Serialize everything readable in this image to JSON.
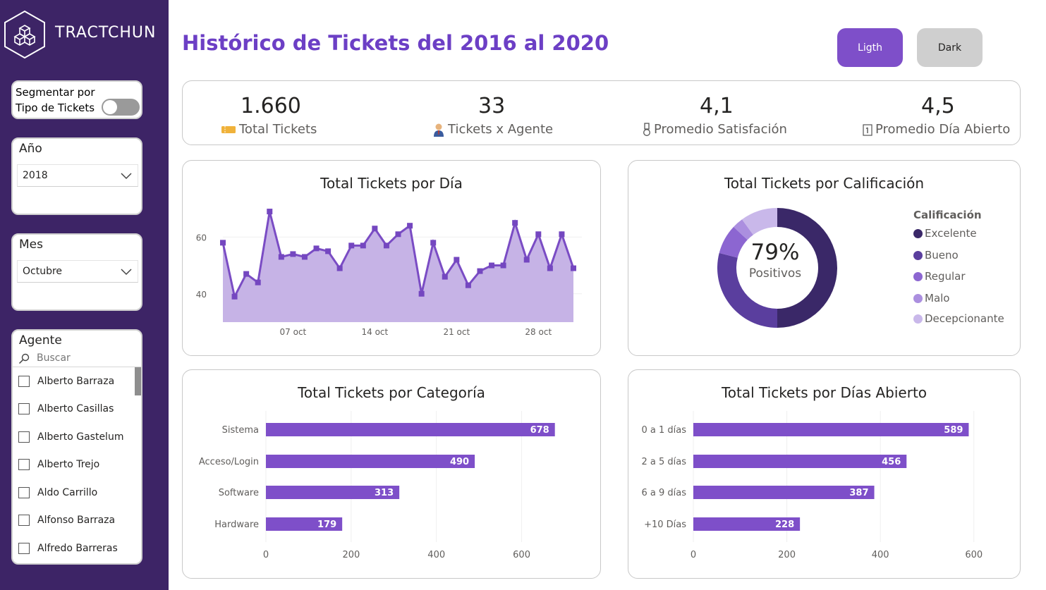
{
  "sidebar": {
    "brand": "TRACTCHUN",
    "segment_label_line1": "Segmentar por",
    "segment_label_line2": "Tipo de Tickets",
    "year": {
      "title": "Año",
      "value": "2018"
    },
    "month": {
      "title": "Mes",
      "value": "Octubre"
    },
    "agent": {
      "title": "Agente",
      "search_placeholder": "Buscar",
      "items": [
        "Alberto Barraza",
        "Alberto Casillas",
        "Alberto Gastelum",
        "Alberto Trejo",
        "Aldo Carrillo",
        "Alfonso Barraza",
        "Alfredo Barreras"
      ]
    }
  },
  "header": {
    "title": "Histórico de Tickets del 2016 al 2020",
    "btn_light": "Ligth",
    "btn_dark": "Dark"
  },
  "kpis": [
    {
      "value": "1.660",
      "label": "Total Tickets",
      "icon": "ticket-icon"
    },
    {
      "value": "33",
      "label": "Tickets x Agente",
      "icon": "agent-icon"
    },
    {
      "value": "4,1",
      "label": "Promedio Satisfación",
      "icon": "medal-icon"
    },
    {
      "value": "4,5",
      "label": "Promedio Día Abierto",
      "icon": "calendar-icon"
    }
  ],
  "colors": {
    "accent": "#6c3fc5",
    "sidebar": "#3d2466",
    "bar": "#7e4fc9",
    "area": "#c6b3e6",
    "line": "#7a4cc4"
  },
  "chart_data": [
    {
      "type": "area",
      "title": "Total Tickets por Día",
      "x_tick_labels": [
        "07 oct",
        "14 oct",
        "21 oct",
        "28 oct"
      ],
      "y_tick_labels": [
        "40",
        "60"
      ],
      "ylim": [
        30,
        72
      ],
      "x": [
        1,
        2,
        3,
        4,
        5,
        6,
        7,
        8,
        9,
        10,
        11,
        12,
        13,
        14,
        15,
        16,
        17,
        18,
        19,
        20,
        21,
        22,
        23,
        24,
        25,
        26,
        27,
        28,
        29,
        30,
        31
      ],
      "values": [
        58,
        39,
        47,
        44,
        69,
        53,
        54,
        53,
        56,
        55,
        49,
        57,
        57,
        63,
        57,
        61,
        64,
        40,
        58,
        46,
        52,
        43,
        48,
        50,
        50,
        65,
        52,
        61,
        49,
        61,
        49
      ]
    },
    {
      "type": "pie",
      "title": "Total Tickets por Calificación",
      "legend_title": "Calificación",
      "center_value": "79%",
      "center_label": "Positivos",
      "categories": [
        "Excelente",
        "Bueno",
        "Regular",
        "Malo",
        "Decepcionante"
      ],
      "values": [
        50,
        29,
        8,
        3,
        10
      ],
      "colors": [
        "#3a2868",
        "#5a3e9e",
        "#8c66d1",
        "#ab8fdf",
        "#c9b8ea"
      ]
    },
    {
      "type": "bar",
      "title": "Total Tickets por Categoría",
      "categories": [
        "Sistema",
        "Acceso/Login",
        "Software",
        "Hardware"
      ],
      "values": [
        678,
        490,
        313,
        179
      ],
      "x_ticks": [
        0,
        200,
        400,
        600
      ],
      "xlim": [
        0,
        700
      ]
    },
    {
      "type": "bar",
      "title": "Total Tickets por Días Abierto",
      "categories": [
        "0 a 1 días",
        "2 a 5 días",
        "6 a 9 días",
        "+10 Días"
      ],
      "values": [
        589,
        456,
        387,
        228
      ],
      "x_ticks": [
        0,
        200,
        400,
        600
      ],
      "xlim": [
        0,
        620
      ]
    }
  ]
}
